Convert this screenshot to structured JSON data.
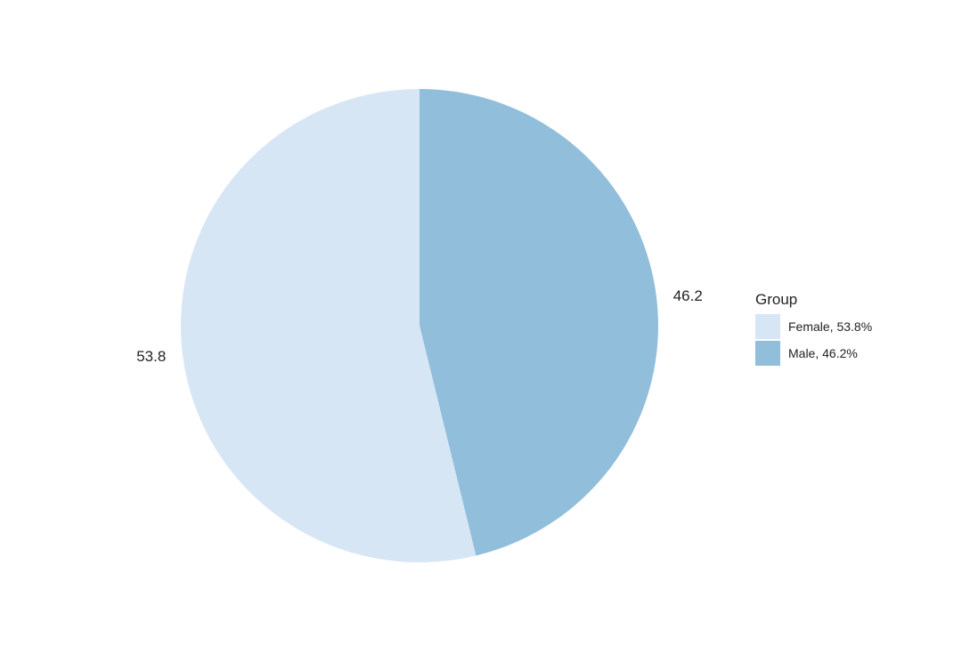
{
  "chart_data": {
    "type": "pie",
    "title": "",
    "legend_title": "Group",
    "legend_position": "right",
    "start_angle_deg": 0,
    "direction": "clockwise",
    "slices": [
      {
        "name": "Male",
        "value": 46.2,
        "label": "46.2",
        "legend_label": "Male, 46.2%",
        "color": "#91BEDB"
      },
      {
        "name": "Female",
        "value": 53.8,
        "label": "53.8",
        "legend_label": "Female, 53.8%",
        "color": "#D7E6F5"
      }
    ],
    "legend_order": [
      "Female",
      "Male"
    ]
  }
}
